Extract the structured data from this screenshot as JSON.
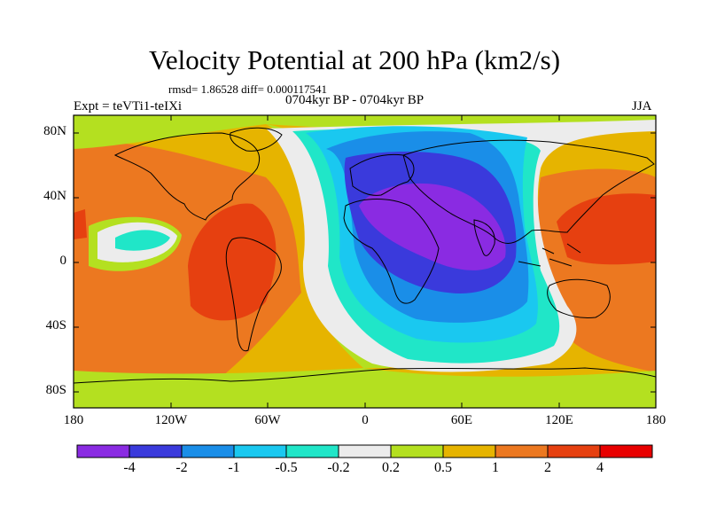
{
  "title": "Velocity Potential at 200 hPa (km2/s)",
  "stats": "rmsd= 1.86528 diff= 0.000117541",
  "experiment": "Expt = teVTi1-teIXi",
  "period": "0704kyr BP - 0704kyr BP",
  "season": "JJA",
  "lat_ticks": [
    "80N",
    "40N",
    "0",
    "40S",
    "80S"
  ],
  "lon_ticks": [
    "180",
    "120W",
    "60W",
    "0",
    "60E",
    "120E",
    "180"
  ],
  "colorbar": {
    "labels": [
      "-4",
      "-2",
      "-1",
      "-0.5",
      "-0.2",
      "0.2",
      "0.5",
      "1",
      "2",
      "4"
    ],
    "colors": [
      "#8a2be2",
      "#3a3adc",
      "#1a8ee8",
      "#1ac8f0",
      "#20e6c8",
      "#ececec",
      "#b4e020",
      "#e6b400",
      "#ec7820",
      "#e64010",
      "#e80000"
    ]
  }
}
